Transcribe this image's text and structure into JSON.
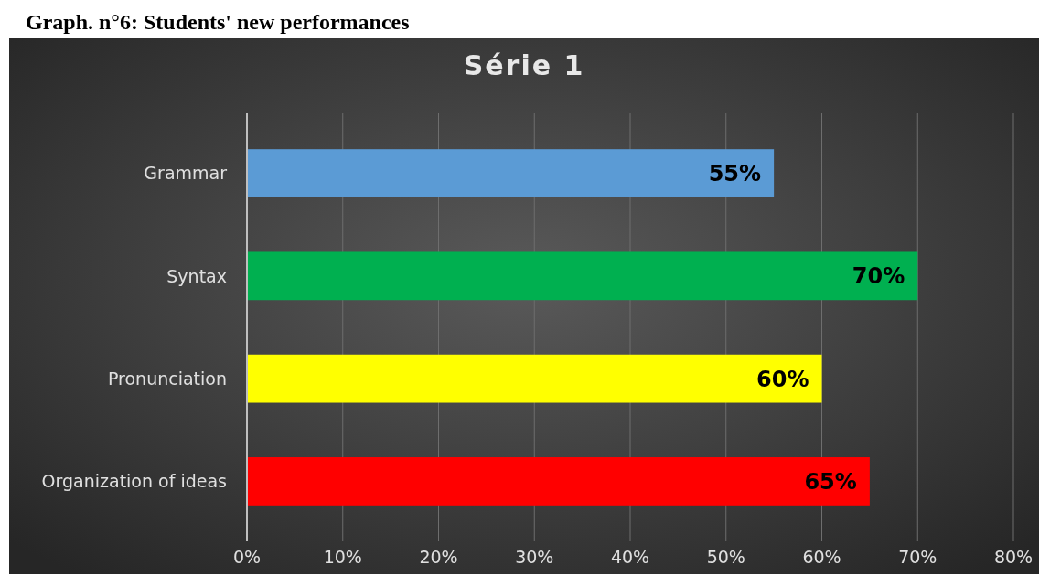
{
  "chart_data": {
    "type": "bar",
    "orientation": "horizontal",
    "title": "Série 1",
    "annotations": [
      "Graph. n°6: Students' new performances"
    ],
    "categories": [
      "Grammar",
      "Syntax",
      "Pronunciation",
      "Organization of ideas"
    ],
    "values": [
      55,
      70,
      60,
      65
    ],
    "colors": [
      "#5b9bd5",
      "#00b050",
      "#ffff00",
      "#ff0000"
    ],
    "value_labels": [
      "55%",
      "70%",
      "60%",
      "65%"
    ],
    "xlim": [
      0,
      80
    ],
    "xticks": [
      {
        "value": 0,
        "label": "0%"
      },
      {
        "value": 10,
        "label": "10%"
      },
      {
        "value": 20,
        "label": "20%"
      },
      {
        "value": 30,
        "label": "30%"
      },
      {
        "value": 40,
        "label": "40%"
      },
      {
        "value": 50,
        "label": "50%"
      },
      {
        "value": 60,
        "label": "60%"
      },
      {
        "value": 70,
        "label": "70%"
      },
      {
        "value": 80,
        "label": "80%"
      }
    ],
    "grid": "x"
  }
}
